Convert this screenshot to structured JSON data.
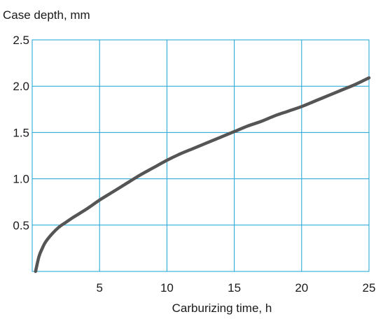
{
  "chart_data": {
    "type": "line",
    "title": "",
    "ylabel": "Case depth, mm",
    "xlabel": "Carburizing time, h",
    "xlim": [
      0,
      25
    ],
    "ylim": [
      0,
      2.5
    ],
    "x_ticks": [
      5,
      10,
      15,
      20,
      25
    ],
    "y_ticks": [
      0.5,
      1.0,
      1.5,
      2.0,
      2.5
    ],
    "x_tick_labels": [
      "5",
      "10",
      "15",
      "20",
      "25"
    ],
    "y_tick_labels": [
      "0.5",
      "1.0",
      "1.5",
      "2.0",
      "2.5"
    ],
    "grid": true,
    "legend": "none",
    "colors": {
      "grid": "#1aa3d6",
      "line": "#555555",
      "text": "#1a1a1a"
    },
    "series": [
      {
        "x": [
          0.25,
          0.5,
          0.75,
          1,
          1.5,
          2,
          2.5,
          3,
          4,
          5,
          6,
          7,
          8,
          9,
          10,
          11,
          12,
          13,
          14,
          15,
          16,
          17,
          18,
          19,
          20,
          21,
          22,
          23,
          24,
          25
        ],
        "y": [
          0.0,
          0.16,
          0.25,
          0.32,
          0.41,
          0.48,
          0.53,
          0.58,
          0.67,
          0.77,
          0.86,
          0.95,
          1.04,
          1.12,
          1.2,
          1.27,
          1.33,
          1.39,
          1.45,
          1.51,
          1.57,
          1.62,
          1.68,
          1.73,
          1.78,
          1.84,
          1.9,
          1.96,
          2.02,
          2.09
        ]
      }
    ]
  }
}
